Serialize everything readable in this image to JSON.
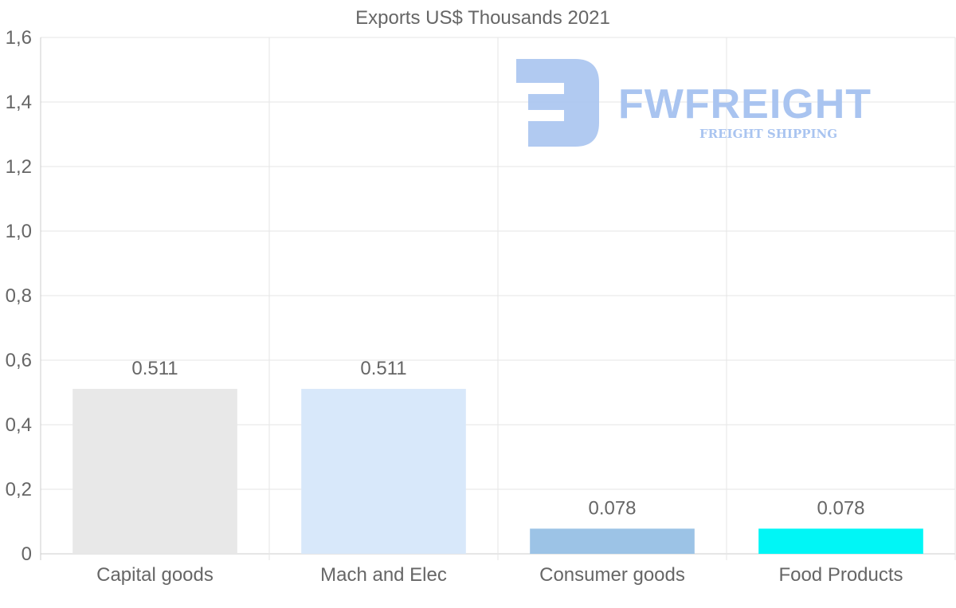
{
  "chart_data": {
    "type": "bar",
    "title": "Exports US$ Thousands 2021",
    "categories": [
      "Capital goods",
      "Mach and Elec",
      "Consumer goods",
      "Food Products"
    ],
    "values": [
      0.511,
      0.511,
      0.078,
      0.078
    ],
    "value_labels": [
      "0.511",
      "0.511",
      "0.078",
      "0.078"
    ],
    "colors": [
      "#e8e8e8",
      "#d8e8fa",
      "#9cc3e6",
      "#00f6f6"
    ],
    "ylim": [
      0,
      1.6
    ],
    "yticks": [
      0,
      0.2,
      0.4,
      0.6,
      0.8,
      1.0,
      1.2,
      1.4,
      1.6
    ],
    "ytick_labels": [
      "0",
      "0,2",
      "0,4",
      "0,6",
      "0,8",
      "1,0",
      "1,2",
      "1,4",
      "1,6"
    ],
    "xlabel": "",
    "ylabel": "",
    "grid": true
  },
  "watermark": {
    "name": "FWFREIGHT",
    "tagline": "FREIGHT SHIPPING",
    "color": "#a9c4f0"
  }
}
